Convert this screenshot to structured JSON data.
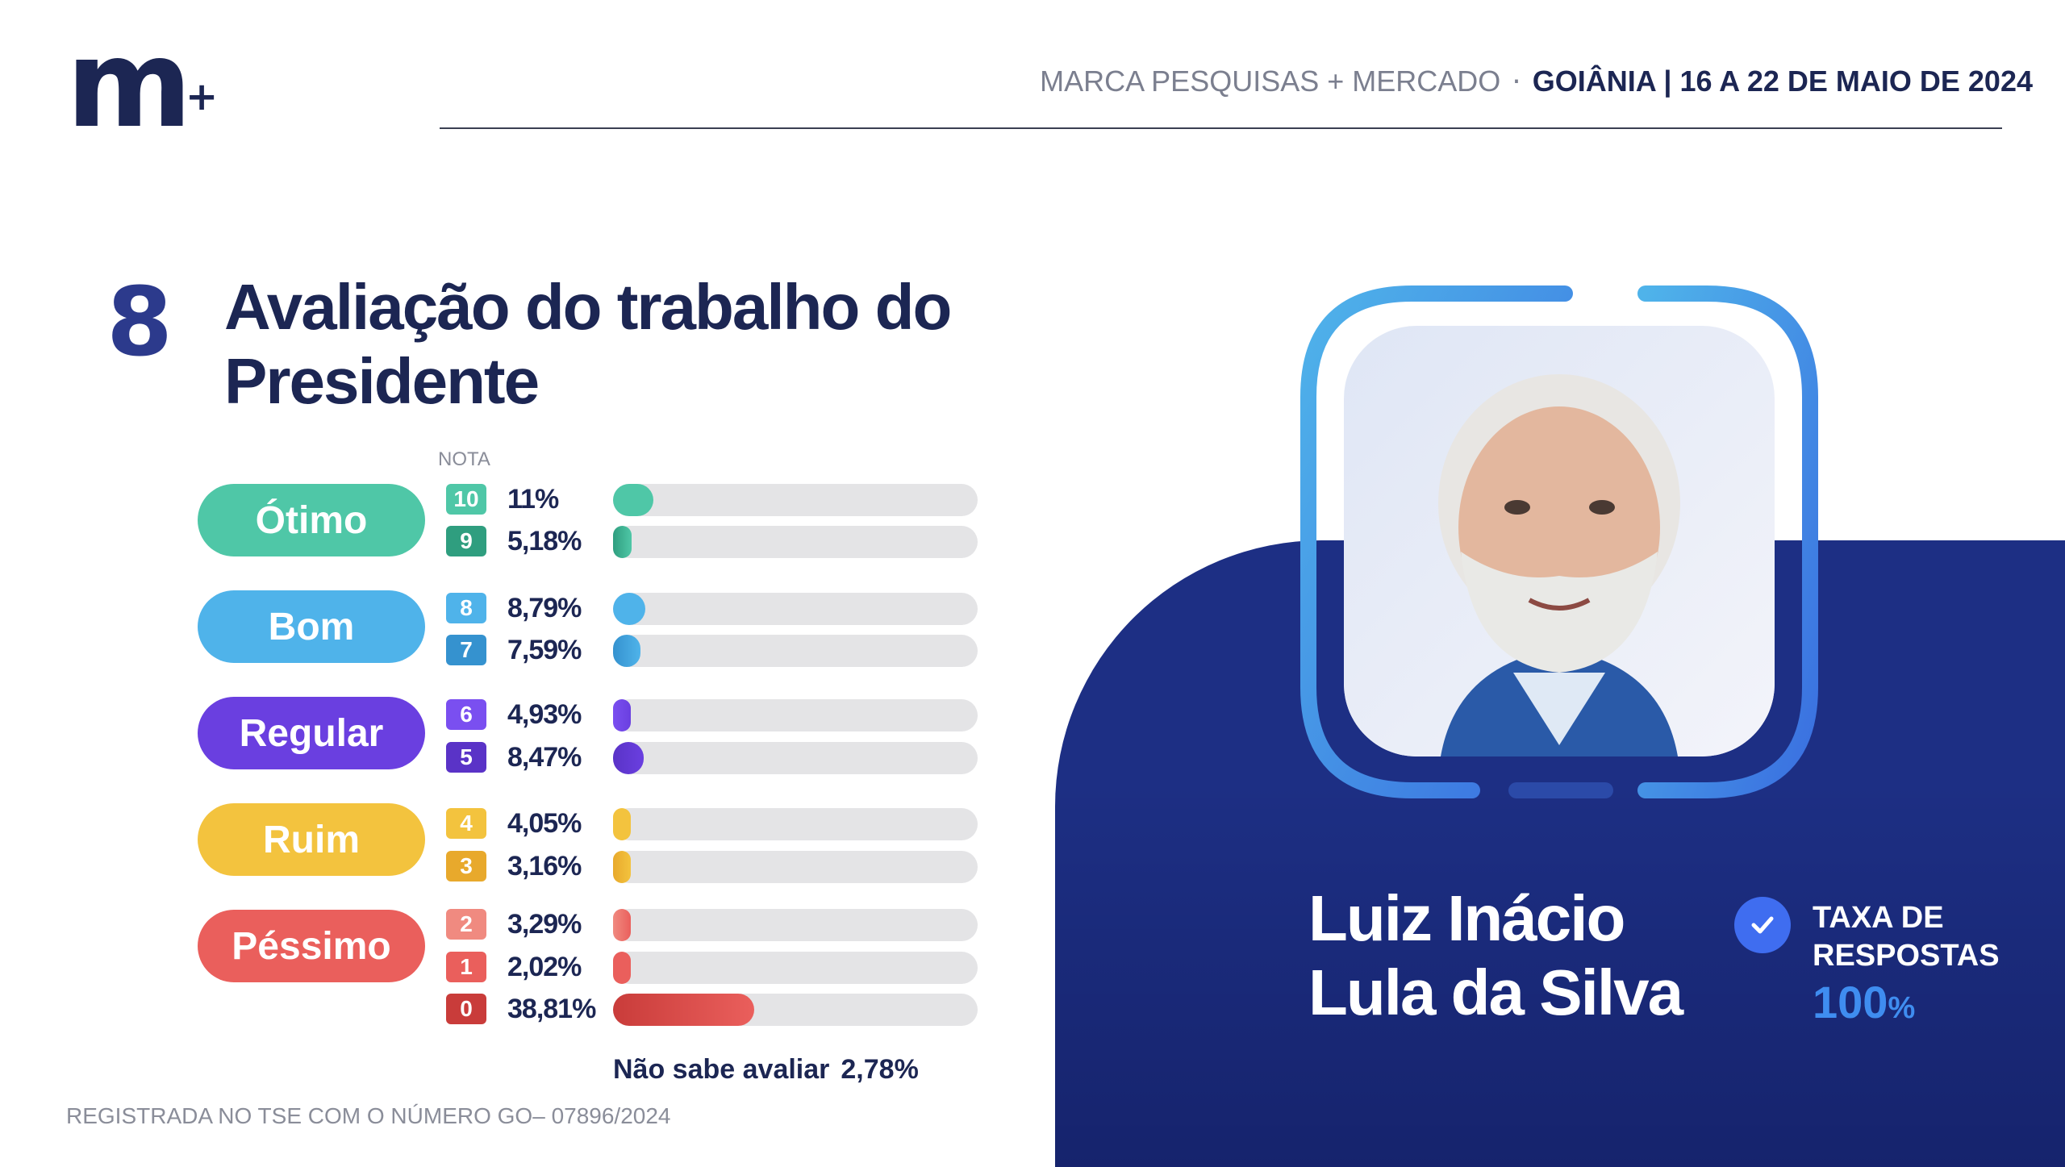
{
  "header": {
    "logo_text": "m",
    "logo_plus": "+",
    "brand": "MARCA PESQUISAS + MERCADO",
    "separator": "·",
    "location_date": "GOIÂNIA | 16 A 22 DE MAIO DE 2024"
  },
  "question": {
    "number": "8",
    "title": "Avaliação do trabalho do Presidente"
  },
  "nota_label": "NOTA",
  "colors": {
    "otimo": "#4fc7a7",
    "otimo_dark": "#2f9e7f",
    "bom": "#4fb3ea",
    "bom_dark": "#3592cf",
    "regular": "#6a3fe0",
    "regular_dark": "#5a33c7",
    "ruim": "#f3c33e",
    "ruim_dark": "#e8a92c",
    "pessimo": "#ea5f5c",
    "pessimo_dark": "#c93c3a",
    "panel": "#1d2f84"
  },
  "chart_data": {
    "type": "bar",
    "title": "Avaliação do trabalho do Presidente",
    "xlim": [
      0,
      100
    ],
    "groups": [
      {
        "label": "Ótimo",
        "color": "#4fc7a7",
        "items": [
          {
            "nota": "10",
            "value": 11,
            "label": "11%",
            "badge": "#4fc7a7"
          },
          {
            "nota": "9",
            "value": 5.18,
            "label": "5,18%",
            "badge": "#2f9e7f"
          }
        ]
      },
      {
        "label": "Bom",
        "color": "#4fb3ea",
        "items": [
          {
            "nota": "8",
            "value": 8.79,
            "label": "8,79%",
            "badge": "#4fb3ea"
          },
          {
            "nota": "7",
            "value": 7.59,
            "label": "7,59%",
            "badge": "#3592cf"
          }
        ]
      },
      {
        "label": "Regular",
        "color": "#6a3fe0",
        "items": [
          {
            "nota": "6",
            "value": 4.93,
            "label": "4,93%",
            "badge": "#7a4ff0"
          },
          {
            "nota": "5",
            "value": 8.47,
            "label": "8,47%",
            "badge": "#5a33c7"
          }
        ]
      },
      {
        "label": "Ruim",
        "color": "#f3c33e",
        "items": [
          {
            "nota": "4",
            "value": 4.05,
            "label": "4,05%",
            "badge": "#f3c33e"
          },
          {
            "nota": "3",
            "value": 3.16,
            "label": "3,16%",
            "badge": "#e8a92c"
          }
        ]
      },
      {
        "label": "Péssimo",
        "color": "#ea5f5c",
        "items": [
          {
            "nota": "2",
            "value": 3.29,
            "label": "3,29%",
            "badge": "#f08a80"
          },
          {
            "nota": "1",
            "value": 2.02,
            "label": "2,02%",
            "badge": "#ea5f5c"
          },
          {
            "nota": "0",
            "value": 38.81,
            "label": "38,81%",
            "badge": "#c93c3a"
          }
        ]
      }
    ],
    "nao_sabe": {
      "label": "Não sabe avaliar",
      "value": 2.78,
      "text": "2,78%"
    }
  },
  "footer": {
    "registro": "REGISTRADA NO TSE COM O NÚMERO GO– 07896/2024"
  },
  "person": {
    "name_line1": "Luiz Inácio",
    "name_line2": "Lula da Silva"
  },
  "taxa": {
    "label_line1": "TAXA DE",
    "label_line2": "RESPOSTAS",
    "value": "100",
    "unit": "%"
  }
}
